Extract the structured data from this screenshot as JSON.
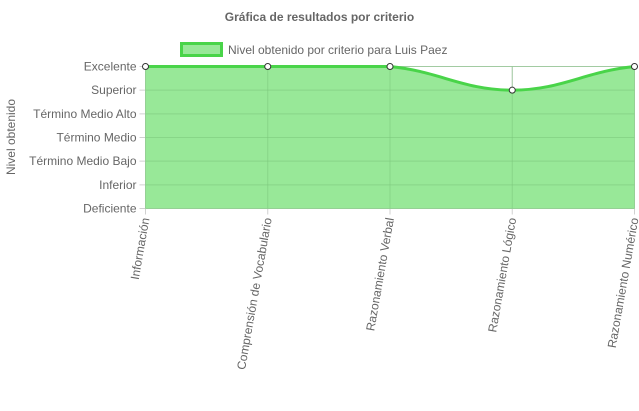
{
  "chart_data": {
    "type": "area",
    "title": "Gráfica de resultados por criterio",
    "xlabel": "",
    "ylabel": "Nivel obtenido",
    "legend_position": "top",
    "grid": true,
    "y_levels": [
      "Deficiente",
      "Inferior",
      "Término Medio Bajo",
      "Término Medio",
      "Término Medio Alto",
      "Superior",
      "Excelente"
    ],
    "ylim": [
      0,
      6
    ],
    "categories": [
      "Información",
      "Comprensión de Vocabulario",
      "Razonamiento Verbal",
      "Razonamiento Lógico",
      "Razonamiento Numérico"
    ],
    "series": [
      {
        "name": "Nivel obtenido por criterio para Luis Paez",
        "values": [
          6,
          6,
          6,
          5,
          6
        ],
        "fill_color": "#98e898",
        "line_color": "#49d449"
      }
    ]
  }
}
